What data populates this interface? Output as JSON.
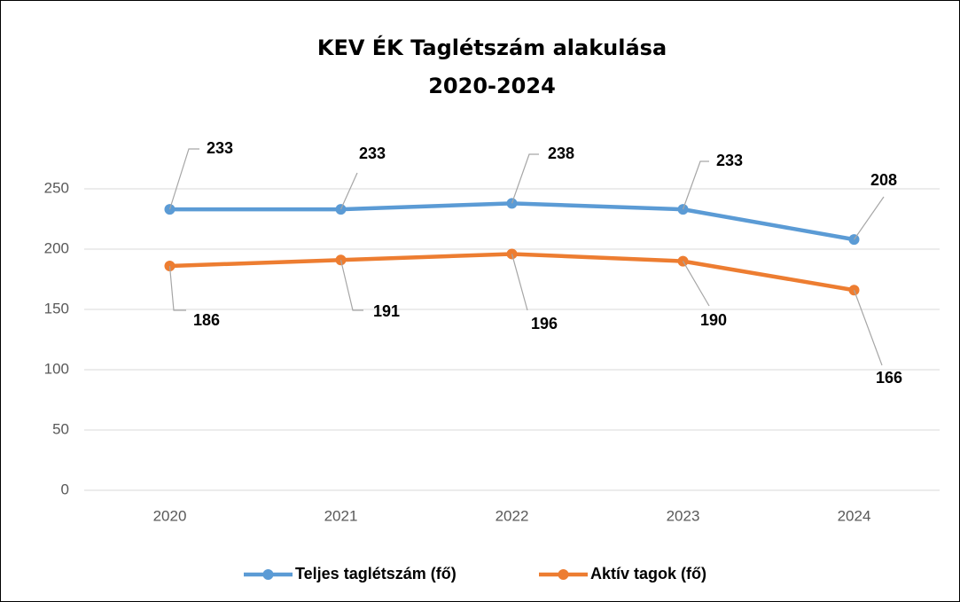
{
  "chart_data": {
    "type": "line",
    "title": "KEV ÉK Taglétszám alakulása",
    "subtitle": "2020-2024",
    "categories": [
      "2020",
      "2021",
      "2022",
      "2023",
      "2024"
    ],
    "series": [
      {
        "name": "Teljes taglétszám (fő)",
        "color": "#5b9bd5",
        "values": [
          233,
          233,
          238,
          233,
          208
        ]
      },
      {
        "name": "Aktív tagok (fő)",
        "color": "#ed7d31",
        "values": [
          186,
          191,
          196,
          190,
          166
        ]
      }
    ],
    "ylim": [
      0,
      250
    ],
    "yticks": [
      0,
      50,
      100,
      150,
      200,
      250
    ],
    "grid": true,
    "legend": "bottom"
  }
}
